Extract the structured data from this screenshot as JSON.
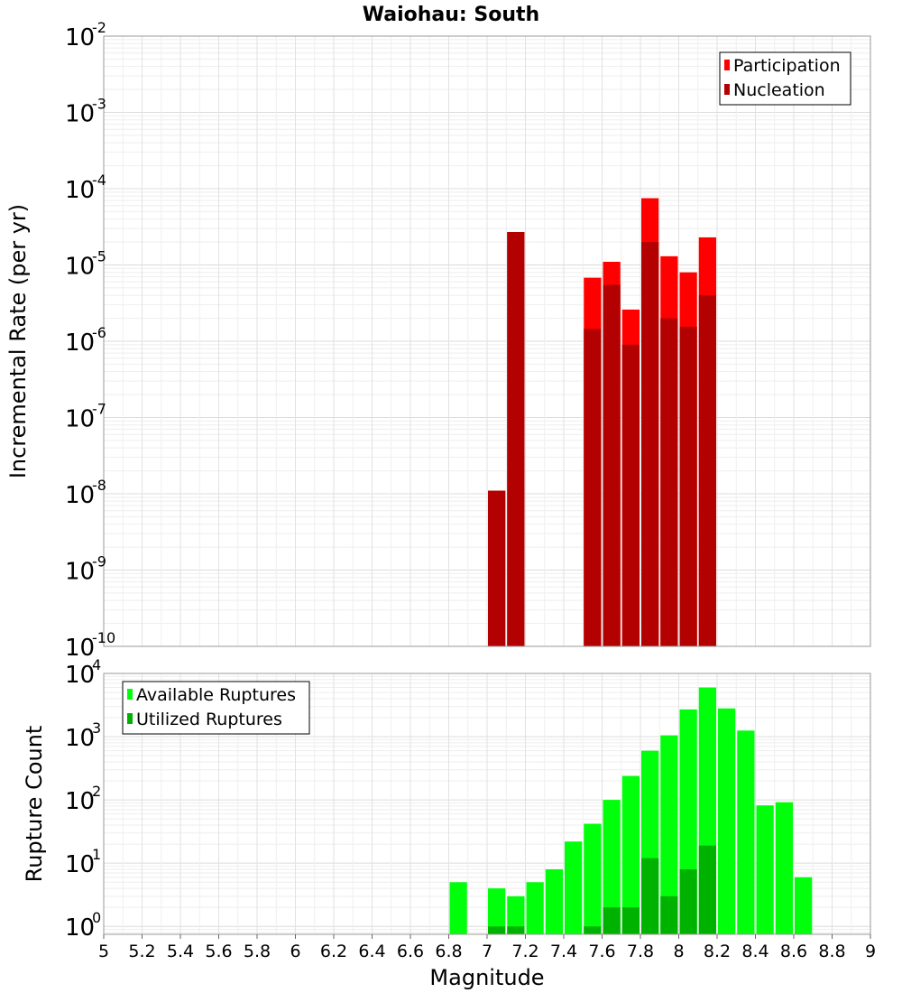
{
  "chart_data": [
    {
      "type": "bar",
      "title": "Waiohau: South",
      "xlabel": "Magnitude",
      "ylabel": "Incremental Rate (per yr)",
      "yscale": "log",
      "xlim": [
        5,
        9
      ],
      "ylim": [
        1e-10,
        0.01
      ],
      "bin_width": 0.1,
      "grid": true,
      "legend_position": "top-right",
      "ytick_labels": [
        {
          "base": "10",
          "exp": "-10"
        },
        {
          "base": "10",
          "exp": "-9"
        },
        {
          "base": "10",
          "exp": "-8"
        },
        {
          "base": "10",
          "exp": "-7"
        },
        {
          "base": "10",
          "exp": "-6"
        },
        {
          "base": "10",
          "exp": "-5"
        },
        {
          "base": "10",
          "exp": "-4"
        },
        {
          "base": "10",
          "exp": "-3"
        },
        {
          "base": "10",
          "exp": "-2"
        }
      ],
      "series": [
        {
          "name": "Participation",
          "color": "#ff0000",
          "points": [
            {
              "x": 7.05,
              "y": 1.1e-08
            },
            {
              "x": 7.15,
              "y": 2.7e-05
            },
            {
              "x": 7.55,
              "y": 6.8e-06
            },
            {
              "x": 7.65,
              "y": 1.1e-05
            },
            {
              "x": 7.75,
              "y": 2.6e-06
            },
            {
              "x": 7.85,
              "y": 7.5e-05
            },
            {
              "x": 7.95,
              "y": 1.3e-05
            },
            {
              "x": 8.05,
              "y": 8e-06
            },
            {
              "x": 8.15,
              "y": 2.3e-05
            }
          ]
        },
        {
          "name": "Nucleation",
          "color": "#b30000",
          "points": [
            {
              "x": 7.05,
              "y": 1.1e-08
            },
            {
              "x": 7.15,
              "y": 2.7e-05
            },
            {
              "x": 7.55,
              "y": 1.45e-06
            },
            {
              "x": 7.65,
              "y": 5.5e-06
            },
            {
              "x": 7.75,
              "y": 9e-07
            },
            {
              "x": 7.85,
              "y": 2e-05
            },
            {
              "x": 7.95,
              "y": 2e-06
            },
            {
              "x": 8.05,
              "y": 1.55e-06
            },
            {
              "x": 8.15,
              "y": 4e-06
            }
          ]
        }
      ]
    },
    {
      "type": "bar",
      "title": "",
      "xlabel": "Magnitude",
      "ylabel": "Rupture Count",
      "yscale": "log",
      "xlim": [
        5,
        9
      ],
      "ylim": [
        0.75,
        10000
      ],
      "bin_width": 0.1,
      "grid": true,
      "legend_position": "top-left",
      "xticks": [
        "5",
        "5.2",
        "5.4",
        "5.6",
        "5.8",
        "6",
        "6.2",
        "6.4",
        "6.6",
        "6.8",
        "7",
        "7.2",
        "7.4",
        "7.6",
        "7.8",
        "8",
        "8.2",
        "8.4",
        "8.6",
        "8.8",
        "9"
      ],
      "ytick_labels": [
        {
          "base": "10",
          "exp": "0"
        },
        {
          "base": "10",
          "exp": "1"
        },
        {
          "base": "10",
          "exp": "2"
        },
        {
          "base": "10",
          "exp": "3"
        },
        {
          "base": "10",
          "exp": "4"
        }
      ],
      "series": [
        {
          "name": "Available Ruptures",
          "color": "#00ff0a",
          "points": [
            {
              "x": 6.85,
              "y": 5
            },
            {
              "x": 7.05,
              "y": 4
            },
            {
              "x": 7.15,
              "y": 3
            },
            {
              "x": 7.25,
              "y": 5
            },
            {
              "x": 7.35,
              "y": 8
            },
            {
              "x": 7.45,
              "y": 22
            },
            {
              "x": 7.55,
              "y": 42
            },
            {
              "x": 7.65,
              "y": 100
            },
            {
              "x": 7.75,
              "y": 240
            },
            {
              "x": 7.85,
              "y": 600
            },
            {
              "x": 7.95,
              "y": 1050
            },
            {
              "x": 8.05,
              "y": 2700
            },
            {
              "x": 8.15,
              "y": 6000
            },
            {
              "x": 8.25,
              "y": 2800
            },
            {
              "x": 8.35,
              "y": 1250
            },
            {
              "x": 8.45,
              "y": 82
            },
            {
              "x": 8.55,
              "y": 92
            },
            {
              "x": 8.65,
              "y": 6
            }
          ]
        },
        {
          "name": "Utilized Ruptures",
          "color": "#00b200",
          "points": [
            {
              "x": 7.05,
              "y": 1
            },
            {
              "x": 7.15,
              "y": 1
            },
            {
              "x": 7.55,
              "y": 1
            },
            {
              "x": 7.65,
              "y": 2
            },
            {
              "x": 7.75,
              "y": 2
            },
            {
              "x": 7.85,
              "y": 12
            },
            {
              "x": 7.95,
              "y": 3
            },
            {
              "x": 8.05,
              "y": 8
            },
            {
              "x": 8.15,
              "y": 19
            }
          ]
        }
      ]
    }
  ]
}
